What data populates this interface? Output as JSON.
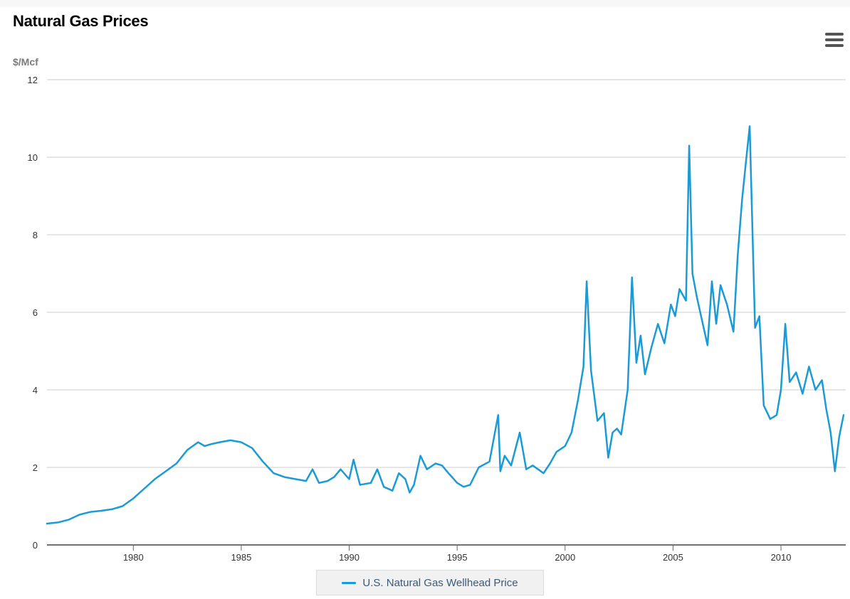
{
  "chart_data": {
    "type": "line",
    "title": "Natural Gas Prices",
    "unit_label": "$/Mcf",
    "xlim": [
      1976,
      1213
    ],
    "ylim": [
      0,
      12
    ],
    "y_ticks": [
      "0",
      "2",
      "4",
      "6",
      "8",
      "10",
      "12"
    ],
    "x_ticks": [
      "1980",
      "1985",
      "1990",
      "1995",
      "2000",
      "2005",
      "2010"
    ],
    "grid": "horizontal",
    "legend_position": "bottom-center",
    "series": [
      {
        "name": "U.S. Natural Gas Wellhead Price",
        "color": "#1a9bd7",
        "x": [
          1976.0,
          1976.5,
          1977.0,
          1977.5,
          1978.0,
          1978.5,
          1979.0,
          1979.5,
          1980.0,
          1980.5,
          1981.0,
          1981.5,
          1982.0,
          1982.5,
          1983.0,
          1983.3,
          1983.6,
          1984.0,
          1984.5,
          1985.0,
          1985.5,
          1986.0,
          1986.5,
          1987.0,
          1987.5,
          1988.0,
          1988.3,
          1988.6,
          1989.0,
          1989.3,
          1989.6,
          1990.0,
          1990.2,
          1990.5,
          1991.0,
          1991.3,
          1991.6,
          1992.0,
          1992.3,
          1992.6,
          1992.8,
          1993.0,
          1993.3,
          1993.6,
          1994.0,
          1994.3,
          1994.6,
          1995.0,
          1995.3,
          1995.6,
          1996.0,
          1996.5,
          1996.9,
          1997.0,
          1997.2,
          1997.5,
          1997.9,
          1998.2,
          1998.5,
          1999.0,
          1999.3,
          1999.6,
          2000.0,
          2000.3,
          2000.6,
          2000.85,
          2001.0,
          2001.2,
          2001.5,
          2001.8,
          2002.0,
          2002.2,
          2002.4,
          2002.6,
          2002.9,
          2003.1,
          2003.3,
          2003.5,
          2003.7,
          2004.0,
          2004.3,
          2004.6,
          2004.9,
          2005.1,
          2005.3,
          2005.6,
          2005.75,
          2005.9,
          2006.1,
          2006.3,
          2006.6,
          2006.8,
          2007.0,
          2007.2,
          2007.5,
          2007.8,
          2008.0,
          2008.2,
          2008.4,
          2008.55,
          2008.8,
          2009.0,
          2009.2,
          2009.5,
          2009.8,
          2010.0,
          2010.2,
          2010.4,
          2010.7,
          2011.0,
          2011.3,
          2011.6,
          2011.9,
          2012.1,
          2012.3,
          2012.5,
          2012.7,
          2012.9
        ],
        "values": [
          0.55,
          0.58,
          0.65,
          0.78,
          0.85,
          0.88,
          0.92,
          1.0,
          1.2,
          1.45,
          1.7,
          1.9,
          2.1,
          2.45,
          2.65,
          2.55,
          2.6,
          2.65,
          2.7,
          2.65,
          2.5,
          2.15,
          1.85,
          1.75,
          1.7,
          1.65,
          1.95,
          1.6,
          1.65,
          1.75,
          1.95,
          1.7,
          2.2,
          1.55,
          1.6,
          1.95,
          1.5,
          1.4,
          1.85,
          1.7,
          1.35,
          1.55,
          2.3,
          1.95,
          2.1,
          2.05,
          1.85,
          1.6,
          1.5,
          1.55,
          2.0,
          2.15,
          3.35,
          1.9,
          2.3,
          2.05,
          2.9,
          1.95,
          2.05,
          1.85,
          2.1,
          2.4,
          2.55,
          2.9,
          3.75,
          4.6,
          6.8,
          4.5,
          3.2,
          3.4,
          2.25,
          2.9,
          3.0,
          2.85,
          4.0,
          6.9,
          4.7,
          5.4,
          4.4,
          5.1,
          5.7,
          5.2,
          6.2,
          5.9,
          6.6,
          6.3,
          10.3,
          7.0,
          6.4,
          5.9,
          5.15,
          6.8,
          5.7,
          6.7,
          6.2,
          5.5,
          7.5,
          8.9,
          10.0,
          10.8,
          5.6,
          5.9,
          3.6,
          3.25,
          3.35,
          4.0,
          5.7,
          4.2,
          4.45,
          3.9,
          4.6,
          4.0,
          4.25,
          3.5,
          2.9,
          1.9,
          2.8,
          3.35
        ]
      }
    ]
  }
}
